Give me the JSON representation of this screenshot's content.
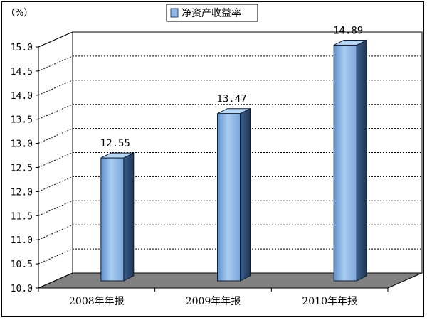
{
  "chart_data": {
    "type": "bar",
    "unit_label": "（%）",
    "categories": [
      "2008年年报",
      "2009年年报",
      "2010年年报"
    ],
    "series": [
      {
        "name": "净资产收益率",
        "values": [
          12.55,
          13.47,
          14.89
        ]
      }
    ],
    "data_labels": [
      "12.55",
      "13.47",
      "14.89"
    ],
    "ylim": [
      10.0,
      15.0
    ],
    "yticks": [
      "10.0",
      "10.5",
      "11.0",
      "11.5",
      "12.0",
      "12.5",
      "13.0",
      "13.5",
      "14.0",
      "14.5",
      "15.0"
    ],
    "grid": true,
    "legend_position": "top",
    "colors": {
      "bar": "#8fb8e8",
      "bar_side": "#2e4a70",
      "floor": "#808080"
    }
  }
}
